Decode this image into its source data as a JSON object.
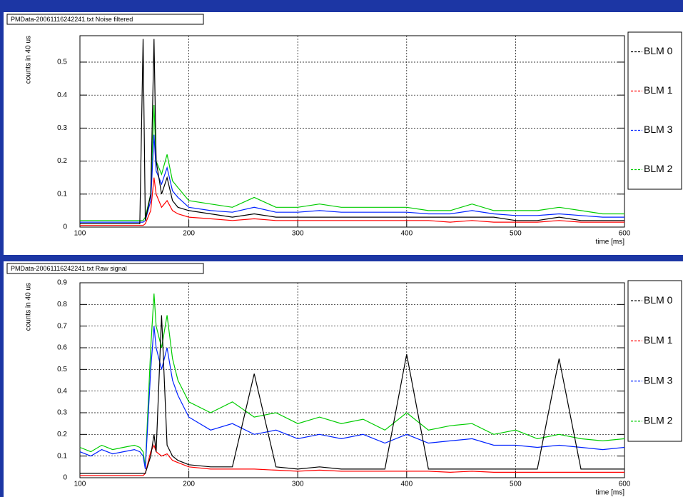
{
  "chart_data": [
    {
      "type": "line",
      "title": "PMData-20061116242241.txt Noise filtered",
      "xlabel": "time [ms]",
      "ylabel": "counts in 40 us",
      "x": [
        100,
        110,
        120,
        130,
        140,
        150,
        155,
        158,
        160,
        165,
        168,
        170,
        175,
        180,
        185,
        190,
        200,
        220,
        240,
        260,
        280,
        300,
        320,
        340,
        360,
        380,
        400,
        420,
        440,
        460,
        480,
        500,
        520,
        540,
        560,
        580,
        600
      ],
      "xlim": [
        100,
        600
      ],
      "ylim": [
        0,
        0.58
      ],
      "xticks": [
        100,
        200,
        300,
        400,
        500,
        600
      ],
      "yticks": [
        0,
        0.1,
        0.2,
        0.3,
        0.4,
        0.5
      ],
      "grid": true,
      "legend": "right",
      "series": [
        {
          "name": "BLM 2",
          "color": "#00cc00",
          "values": [
            0.02,
            0.02,
            0.02,
            0.02,
            0.02,
            0.02,
            0.02,
            0.02,
            0.03,
            0.1,
            0.37,
            0.2,
            0.16,
            0.22,
            0.14,
            0.12,
            0.08,
            0.07,
            0.06,
            0.09,
            0.06,
            0.06,
            0.07,
            0.06,
            0.06,
            0.06,
            0.06,
            0.05,
            0.05,
            0.07,
            0.05,
            0.05,
            0.05,
            0.06,
            0.05,
            0.04,
            0.04
          ]
        },
        {
          "name": "BLM 3",
          "color": "#0022ff",
          "values": [
            0.015,
            0.015,
            0.015,
            0.015,
            0.015,
            0.015,
            0.015,
            0.015,
            0.02,
            0.08,
            0.28,
            0.17,
            0.13,
            0.18,
            0.11,
            0.09,
            0.06,
            0.05,
            0.045,
            0.06,
            0.045,
            0.045,
            0.05,
            0.045,
            0.045,
            0.045,
            0.045,
            0.04,
            0.04,
            0.05,
            0.04,
            0.035,
            0.035,
            0.04,
            0.035,
            0.03,
            0.03
          ]
        },
        {
          "name": "BLM 1",
          "color": "#ff0000",
          "values": [
            0.005,
            0.005,
            0.005,
            0.005,
            0.005,
            0.005,
            0.005,
            0.005,
            0.01,
            0.05,
            0.15,
            0.1,
            0.06,
            0.08,
            0.05,
            0.04,
            0.03,
            0.025,
            0.02,
            0.025,
            0.02,
            0.02,
            0.02,
            0.02,
            0.02,
            0.02,
            0.02,
            0.02,
            0.015,
            0.02,
            0.015,
            0.015,
            0.015,
            0.02,
            0.015,
            0.015,
            0.015
          ]
        },
        {
          "name": "BLM 0",
          "color": "#000000",
          "values": [
            0.01,
            0.01,
            0.01,
            0.01,
            0.01,
            0.01,
            0.01,
            0.57,
            0.02,
            0.1,
            0.57,
            0.2,
            0.1,
            0.15,
            0.08,
            0.06,
            0.05,
            0.04,
            0.03,
            0.04,
            0.03,
            0.03,
            0.03,
            0.03,
            0.03,
            0.03,
            0.03,
            0.03,
            0.03,
            0.03,
            0.03,
            0.02,
            0.02,
            0.03,
            0.02,
            0.02,
            0.02
          ]
        }
      ]
    },
    {
      "type": "line",
      "title": "PMData-20061116242241.txt Raw signal",
      "xlabel": "time [ms]",
      "ylabel": "counts in 40 us",
      "x": [
        100,
        110,
        120,
        130,
        140,
        150,
        155,
        158,
        160,
        165,
        168,
        170,
        175,
        180,
        185,
        190,
        200,
        220,
        240,
        260,
        280,
        300,
        320,
        340,
        360,
        380,
        400,
        420,
        440,
        460,
        480,
        500,
        520,
        540,
        560,
        580,
        600
      ],
      "xlim": [
        100,
        600
      ],
      "ylim": [
        0,
        0.9
      ],
      "xticks": [
        100,
        200,
        300,
        400,
        500,
        600
      ],
      "yticks": [
        0,
        0.1,
        0.2,
        0.3,
        0.4,
        0.5,
        0.6,
        0.7,
        0.8,
        0.9
      ],
      "grid": true,
      "legend": "right",
      "series": [
        {
          "name": "BLM 2",
          "color": "#00cc00",
          "values": [
            0.14,
            0.12,
            0.15,
            0.13,
            0.14,
            0.15,
            0.14,
            0.12,
            0.05,
            0.6,
            0.85,
            0.7,
            0.6,
            0.75,
            0.55,
            0.45,
            0.35,
            0.3,
            0.35,
            0.28,
            0.3,
            0.25,
            0.28,
            0.25,
            0.27,
            0.22,
            0.3,
            0.22,
            0.24,
            0.25,
            0.2,
            0.22,
            0.18,
            0.2,
            0.18,
            0.17,
            0.18
          ]
        },
        {
          "name": "BLM 3",
          "color": "#0022ff",
          "values": [
            0.12,
            0.1,
            0.13,
            0.11,
            0.12,
            0.13,
            0.12,
            0.1,
            0.04,
            0.5,
            0.7,
            0.6,
            0.5,
            0.6,
            0.45,
            0.38,
            0.28,
            0.22,
            0.25,
            0.2,
            0.22,
            0.18,
            0.2,
            0.18,
            0.2,
            0.16,
            0.2,
            0.16,
            0.17,
            0.18,
            0.15,
            0.15,
            0.14,
            0.15,
            0.14,
            0.13,
            0.14
          ]
        },
        {
          "name": "BLM 1",
          "color": "#ff0000",
          "values": [
            0.01,
            0.01,
            0.01,
            0.01,
            0.01,
            0.01,
            0.01,
            0.01,
            0.02,
            0.12,
            0.15,
            0.12,
            0.1,
            0.11,
            0.08,
            0.07,
            0.05,
            0.04,
            0.04,
            0.04,
            0.035,
            0.03,
            0.035,
            0.03,
            0.03,
            0.03,
            0.03,
            0.03,
            0.025,
            0.03,
            0.025,
            0.025,
            0.025,
            0.025,
            0.025,
            0.025,
            0.025
          ]
        },
        {
          "name": "BLM 0",
          "color": "#000000",
          "values": [
            0.02,
            0.02,
            0.02,
            0.02,
            0.02,
            0.02,
            0.02,
            0.02,
            0.02,
            0.1,
            0.2,
            0.12,
            0.75,
            0.15,
            0.1,
            0.08,
            0.06,
            0.05,
            0.05,
            0.48,
            0.05,
            0.04,
            0.05,
            0.04,
            0.04,
            0.04,
            0.57,
            0.04,
            0.04,
            0.04,
            0.04,
            0.04,
            0.04,
            0.55,
            0.04,
            0.04,
            0.04
          ]
        }
      ]
    }
  ]
}
